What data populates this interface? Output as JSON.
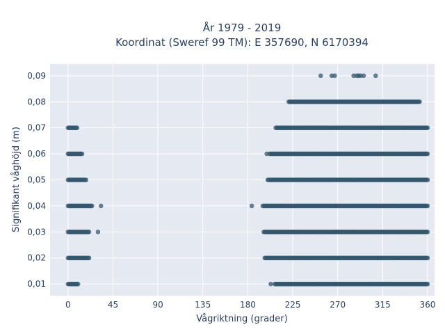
{
  "chart_data": {
    "type": "scatter",
    "title": "År 1979 - 2019",
    "subtitle": "Koordinat (Sweref 99 TM): E 357690, N 6170394",
    "xlabel": "Vågriktning (grader)",
    "ylabel": "Signifikant våghöjd (m)",
    "xlim": [
      -18,
      367
    ],
    "ylim": [
      0.0055,
      0.0945
    ],
    "x_ticks": [
      0,
      45,
      90,
      135,
      180,
      225,
      270,
      315,
      360
    ],
    "x_tick_labels": [
      "0",
      "45",
      "90",
      "135",
      "180",
      "225",
      "270",
      "315",
      "360"
    ],
    "y_ticks": [
      0.01,
      0.02,
      0.03,
      0.04,
      0.05,
      0.06,
      0.07,
      0.08,
      0.09
    ],
    "y_tick_labels": [
      "0,01",
      "0,02",
      "0,03",
      "0,04",
      "0,05",
      "0,06",
      "0,07",
      "0,08",
      "0,09"
    ],
    "grid": true,
    "legend": "none",
    "marker_color": "#34576e",
    "plot_background": "#e5e9f1",
    "point_bands": [
      {
        "y": 0.01,
        "x_ranges": [
          [
            0,
            10
          ],
          [
            207,
            360
          ]
        ],
        "outliers": [
          203
        ]
      },
      {
        "y": 0.02,
        "x_ranges": [
          [
            0,
            21
          ],
          [
            197,
            360
          ]
        ],
        "outliers": []
      },
      {
        "y": 0.03,
        "x_ranges": [
          [
            0,
            21
          ],
          [
            196,
            360
          ]
        ],
        "outliers": [
          30
        ]
      },
      {
        "y": 0.04,
        "x_ranges": [
          [
            0,
            24
          ],
          [
            195,
            360
          ]
        ],
        "outliers": [
          33,
          184
        ]
      },
      {
        "y": 0.05,
        "x_ranges": [
          [
            0,
            18
          ],
          [
            200,
            360
          ]
        ],
        "outliers": []
      },
      {
        "y": 0.06,
        "x_ranges": [
          [
            0,
            14
          ],
          [
            202,
            360
          ]
        ],
        "outliers": [
          199
        ]
      },
      {
        "y": 0.07,
        "x_ranges": [
          [
            0,
            9
          ],
          [
            208,
            360
          ]
        ],
        "outliers": []
      },
      {
        "y": 0.08,
        "x_ranges": [
          [
            221,
            352
          ]
        ],
        "outliers": []
      },
      {
        "y": 0.09,
        "x_ranges": [],
        "outliers": [
          253,
          264,
          267,
          286,
          289,
          291,
          293,
          296,
          308
        ]
      }
    ]
  }
}
